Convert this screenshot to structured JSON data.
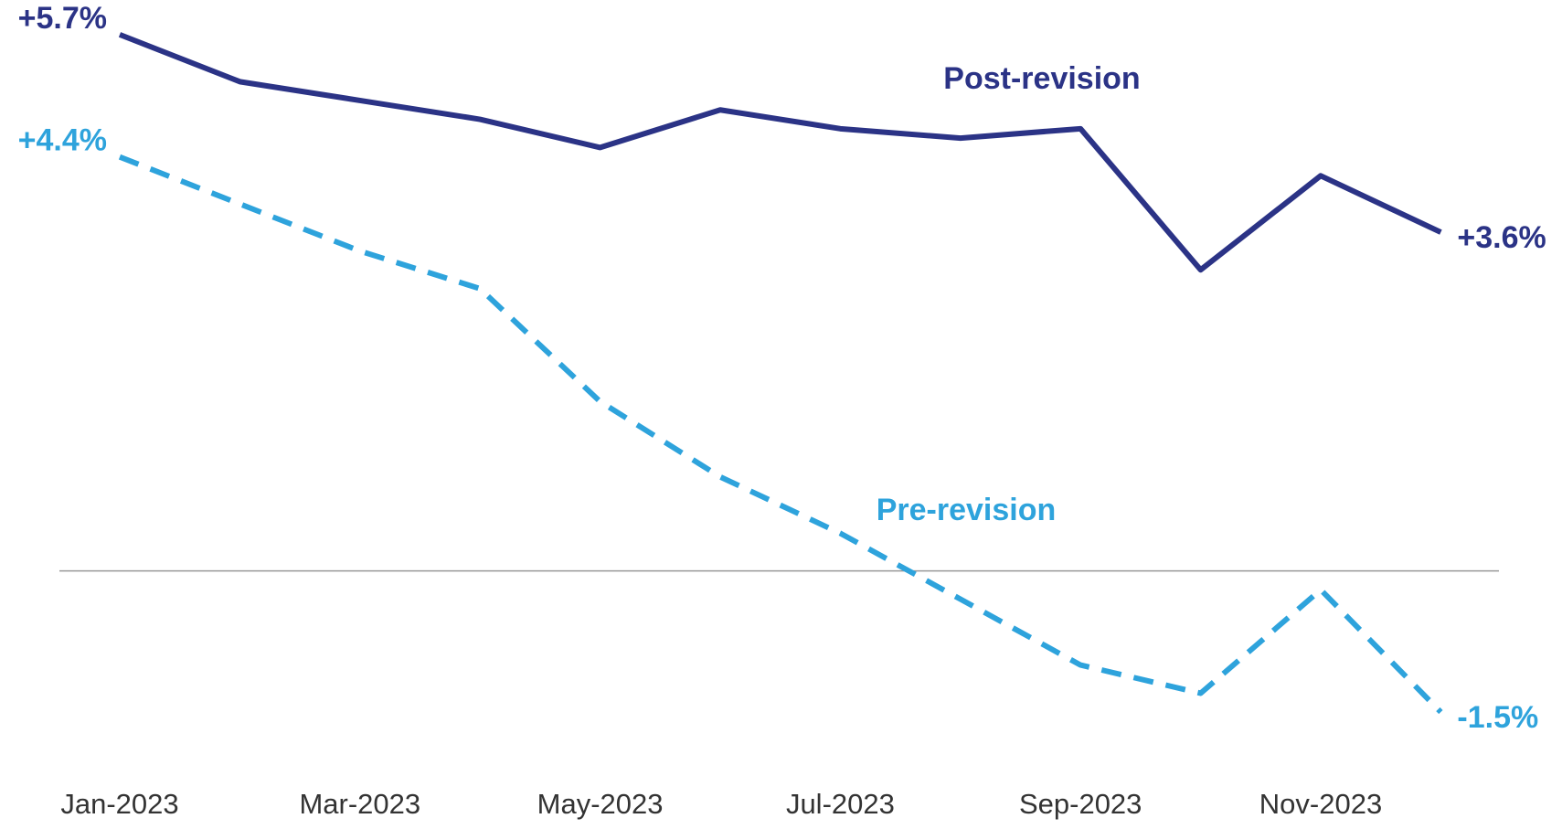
{
  "chart_data": {
    "type": "line",
    "categories": [
      "Jan-2023",
      null,
      "Mar-2023",
      null,
      "May-2023",
      null,
      "Jul-2023",
      null,
      "Sep-2023",
      null,
      "Nov-2023",
      null
    ],
    "series": [
      {
        "name": "Post-revision",
        "color": "#2b3386",
        "dashed": false,
        "values": [
          5.7,
          5.2,
          5.0,
          4.8,
          4.5,
          4.9,
          4.7,
          4.6,
          4.7,
          3.2,
          4.2,
          3.6
        ],
        "value_labels": [
          "+5.7%",
          null,
          null,
          null,
          null,
          null,
          null,
          null,
          null,
          null,
          null,
          "+3.6%"
        ]
      },
      {
        "name": "Pre-revision",
        "color": "#2ea3dc",
        "dashed": true,
        "values": [
          4.4,
          3.9,
          3.4,
          3.0,
          1.8,
          1.0,
          0.4,
          -0.3,
          -1.0,
          -1.3,
          -0.2,
          -1.5
        ],
        "value_labels": [
          "+4.4%",
          null,
          null,
          null,
          null,
          null,
          null,
          null,
          null,
          null,
          null,
          "-1.5%"
        ]
      }
    ],
    "ylim": [
      -2.5,
      6
    ]
  }
}
